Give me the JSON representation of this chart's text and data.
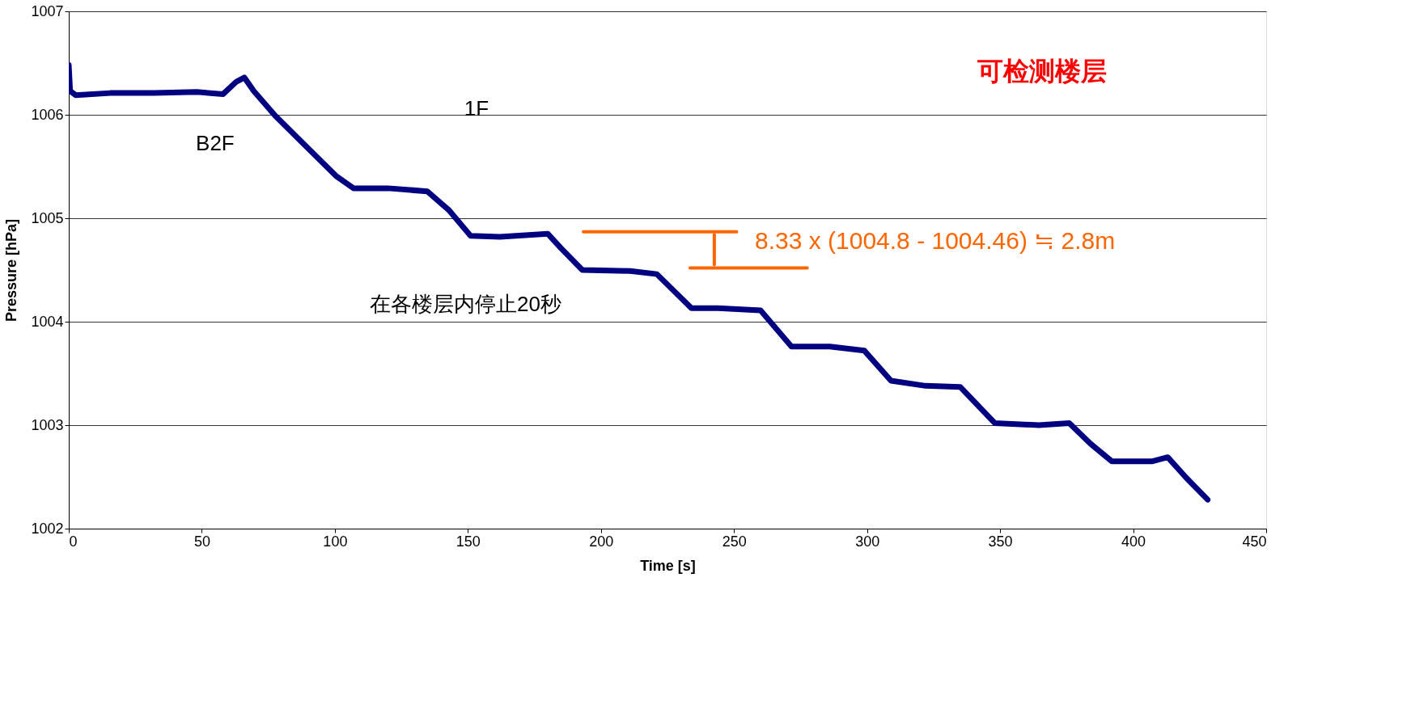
{
  "chart_data": {
    "type": "line",
    "xlabel": "Time [s]",
    "ylabel": "Pressure [hPa]",
    "xlim": [
      0,
      450
    ],
    "xticks": [
      0,
      50,
      100,
      150,
      200,
      250,
      300,
      350,
      400,
      450
    ],
    "ylim": [
      1002,
      1007
    ],
    "yticks": [
      1002,
      1003,
      1004,
      1005,
      1006,
      1007
    ],
    "grid": "y",
    "marker": "none",
    "line_style": "solid",
    "series": [
      {
        "color": "#000080",
        "x": [
          0,
          0.5,
          2.6,
          15.6,
          32,
          48,
          58,
          63,
          66,
          69.5,
          77.6,
          87.4,
          100.4,
          107,
          120,
          134.7,
          142.8,
          151,
          162,
          180,
          185,
          193,
          211,
          221,
          234,
          244,
          260,
          271.6,
          286,
          299,
          309,
          322,
          335,
          348,
          364.5,
          376,
          384,
          392,
          407,
          413,
          420,
          428
        ],
        "values": [
          1006.48,
          1006.23,
          1006.19,
          1006.21,
          1006.21,
          1006.22,
          1006.2,
          1006.32,
          1006.36,
          1006.23,
          1005.99,
          1005.74,
          1005.41,
          1005.29,
          1005.29,
          1005.26,
          1005.08,
          1004.83,
          1004.82,
          1004.85,
          1004.71,
          1004.5,
          1004.49,
          1004.46,
          1004.13,
          1004.13,
          1004.11,
          1003.76,
          1003.76,
          1003.72,
          1003.43,
          1003.38,
          1003.37,
          1003.02,
          1003.0,
          1003.02,
          1002.82,
          1002.65,
          1002.65,
          1002.69,
          1002.49,
          1002.28
        ]
      },
      {
        "color": "#ff6600",
        "x": [
          193.4,
          251
        ],
        "values": [
          1004.87,
          1004.87
        ]
      },
      {
        "color": "#ff6600",
        "x": [
          233.5,
          277.5
        ],
        "values": [
          1004.52,
          1004.52
        ]
      },
      {
        "color": "#ff6600",
        "x": [
          242.6,
          242.6
        ],
        "values": [
          1004.84,
          1004.55
        ]
      }
    ],
    "annotations": [
      {
        "text": "B2F",
        "x": 55,
        "y": 1006.2
      },
      "1F",
      {
        "text": "在各楼层内停止20秒",
        "x": 182.6,
        "y": 1004.83
      },
      "8.33 x (1004.8 - 1004.46) ≒ 2.8m",
      "可检测楼层"
    ]
  }
}
